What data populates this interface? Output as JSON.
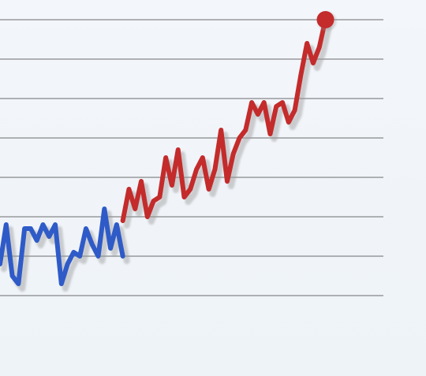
{
  "chart_data": {
    "type": "line",
    "title": "",
    "xlabel": "",
    "ylabel": "",
    "grid": true,
    "xlim": [
      0,
      60
    ],
    "ylim": [
      0,
      8.5
    ],
    "gridline_values": [
      1,
      2,
      3,
      4,
      5,
      6,
      7,
      8
    ],
    "series": [
      {
        "color": "#2f5bc8",
        "x": [
          0,
          1,
          2,
          3,
          4,
          5,
          6,
          7,
          8,
          9,
          10,
          11,
          12,
          13,
          14,
          15,
          16,
          17,
          18,
          19,
          20
        ],
        "y": [
          1.8,
          2.8,
          1.5,
          1.3,
          2.7,
          2.7,
          2.4,
          2.8,
          2.5,
          2.8,
          1.3,
          1.8,
          2.1,
          2.0,
          2.7,
          2.3,
          2.0,
          3.2,
          2.2,
          2.8,
          2.0
        ]
      },
      {
        "color": "#c42b2b",
        "x": [
          20,
          21,
          22,
          23,
          24,
          25,
          26,
          27,
          28,
          29,
          30,
          31,
          32,
          33,
          34,
          35,
          36,
          37,
          38,
          39,
          40,
          41,
          42,
          43,
          44,
          45,
          46,
          47,
          48,
          49,
          50,
          51,
          52,
          53
        ],
        "y": [
          2.9,
          3.7,
          3.2,
          3.9,
          3.0,
          3.4,
          3.5,
          4.5,
          3.8,
          4.7,
          3.5,
          3.7,
          4.2,
          4.5,
          3.7,
          4.2,
          5.2,
          3.9,
          4.6,
          5.0,
          5.2,
          5.9,
          5.6,
          5.9,
          5.1,
          5.8,
          5.9,
          5.4,
          5.7,
          6.6,
          7.4,
          6.9,
          7.3,
          8.0
        ]
      }
    ],
    "end_marker": {
      "x": 53,
      "y": 8.0,
      "color": "#c42b2b"
    }
  }
}
